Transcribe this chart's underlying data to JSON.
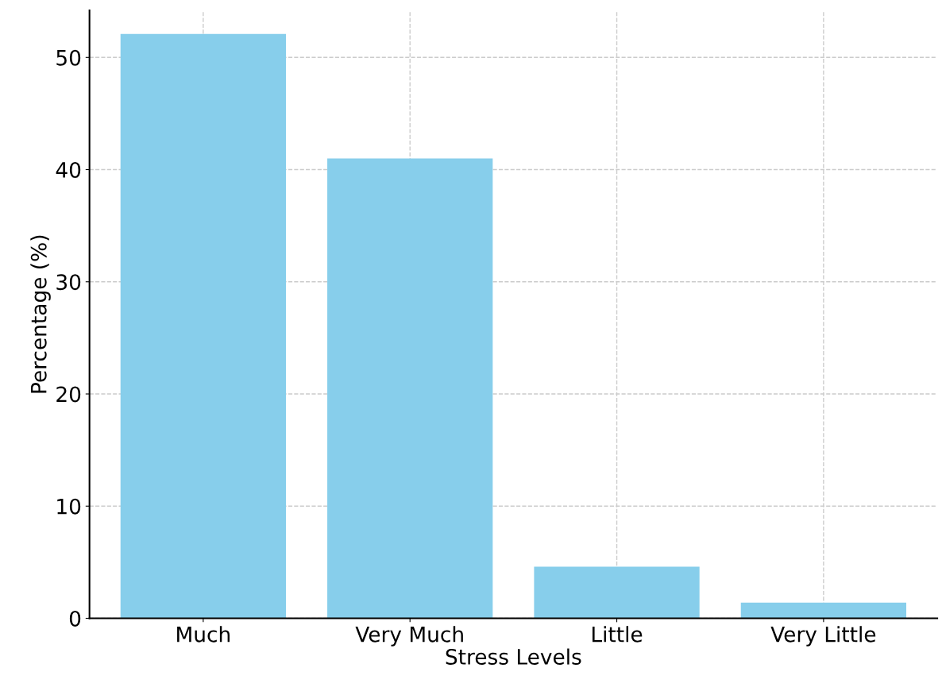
{
  "chart_data": {
    "type": "bar",
    "xlabel": "Stress Levels",
    "ylabel": "Percentage (%)",
    "categories": [
      "Much",
      "Very Much",
      "Little",
      "Very Little"
    ],
    "values": [
      52.1,
      41.0,
      4.6,
      1.4
    ],
    "color": "#87ceeb",
    "ylim": [
      0,
      54.2
    ],
    "yticks": [
      0,
      10,
      20,
      30,
      40,
      50
    ],
    "grid": true
  }
}
